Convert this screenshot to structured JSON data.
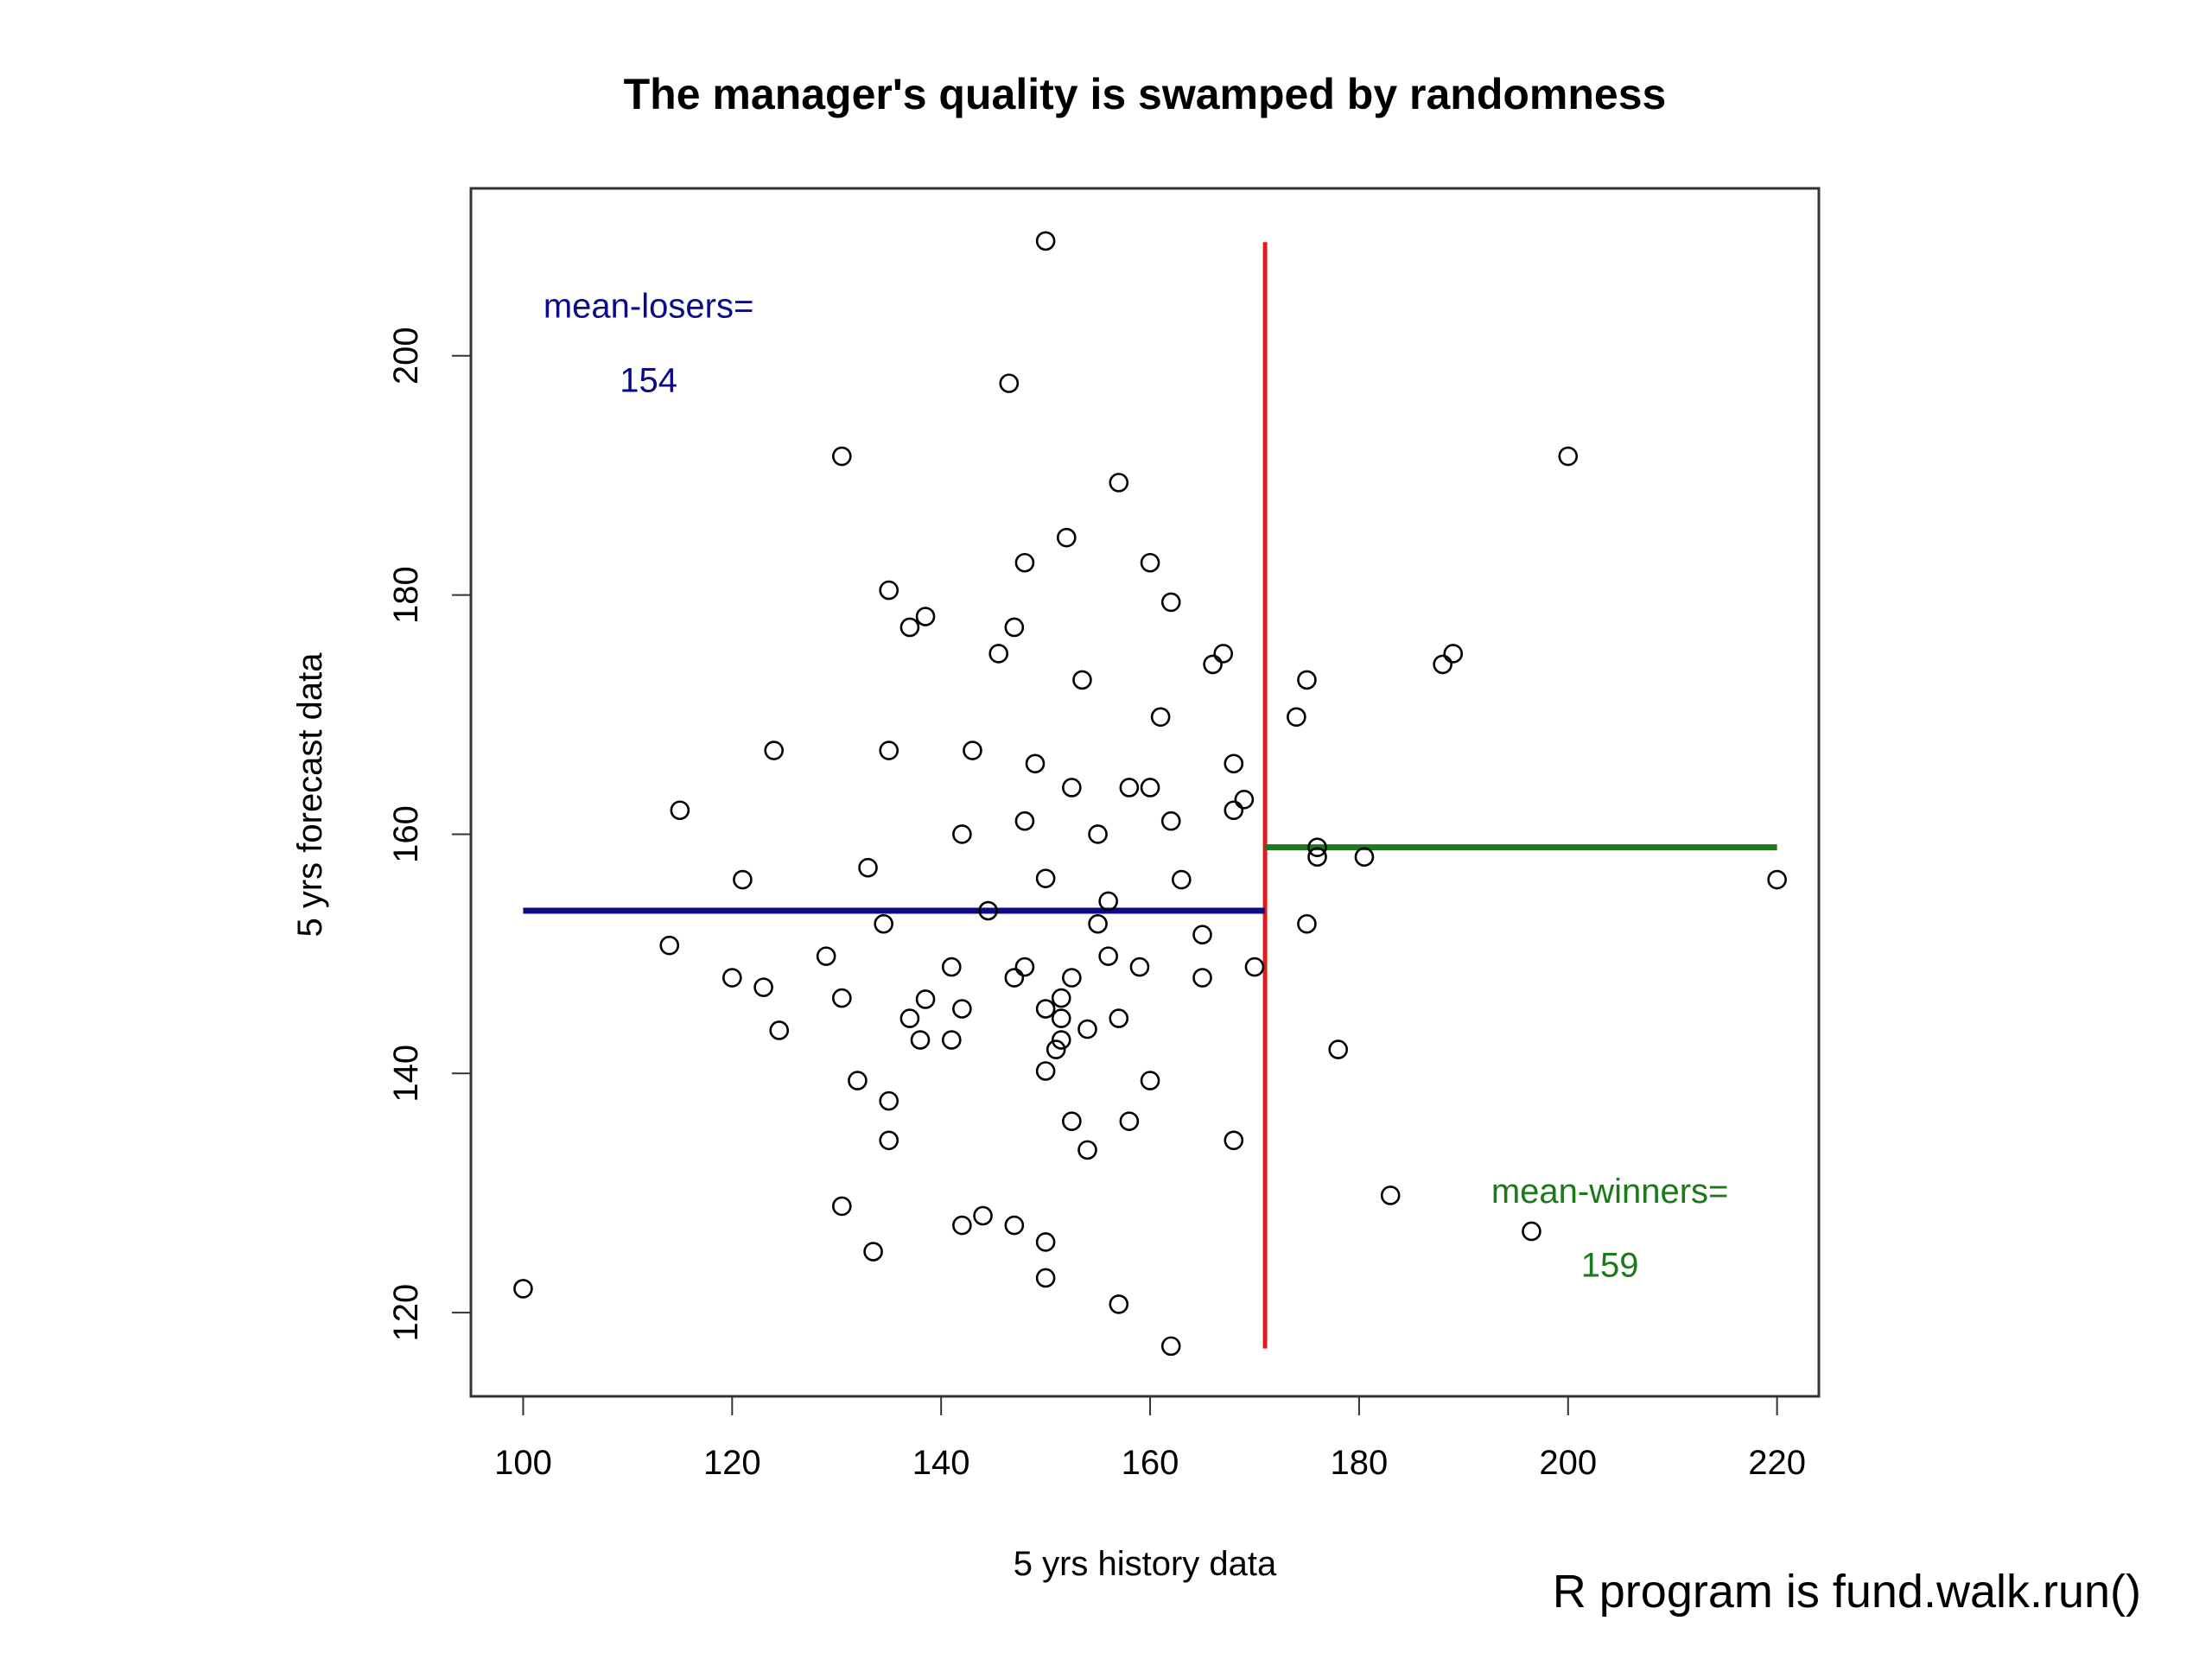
{
  "chart_data": {
    "type": "scatter",
    "title": "The manager's quality is swamped by randomness",
    "xlabel": "5 yrs history data",
    "ylabel": "5 yrs forecast data",
    "xlim": [
      95,
      224
    ],
    "ylim": [
      113,
      214
    ],
    "xticks": [
      100,
      120,
      140,
      160,
      180,
      200,
      220
    ],
    "yticks": [
      120,
      140,
      160,
      180,
      200
    ],
    "grid": false,
    "points": [
      {
        "x": 100,
        "y": 122
      },
      {
        "x": 114,
        "y": 150.7
      },
      {
        "x": 115,
        "y": 162
      },
      {
        "x": 120,
        "y": 148
      },
      {
        "x": 121,
        "y": 156.2
      },
      {
        "x": 123,
        "y": 147.2
      },
      {
        "x": 124,
        "y": 167
      },
      {
        "x": 124.5,
        "y": 143.6
      },
      {
        "x": 129,
        "y": 149.8
      },
      {
        "x": 130.5,
        "y": 191.6
      },
      {
        "x": 130.5,
        "y": 146.3
      },
      {
        "x": 130.5,
        "y": 128.9
      },
      {
        "x": 132,
        "y": 139.4
      },
      {
        "x": 133,
        "y": 157.2
      },
      {
        "x": 133.5,
        "y": 125.1
      },
      {
        "x": 134.5,
        "y": 152.5
      },
      {
        "x": 135,
        "y": 180.4
      },
      {
        "x": 135,
        "y": 167
      },
      {
        "x": 135,
        "y": 137.7
      },
      {
        "x": 135,
        "y": 134.4
      },
      {
        "x": 137,
        "y": 177.3
      },
      {
        "x": 137,
        "y": 144.6
      },
      {
        "x": 138,
        "y": 142.8
      },
      {
        "x": 138.5,
        "y": 178.2
      },
      {
        "x": 138.5,
        "y": 146.2
      },
      {
        "x": 141,
        "y": 148.9
      },
      {
        "x": 141,
        "y": 142.8
      },
      {
        "x": 142,
        "y": 160
      },
      {
        "x": 142,
        "y": 145.4
      },
      {
        "x": 142,
        "y": 127.3
      },
      {
        "x": 143,
        "y": 167
      },
      {
        "x": 144,
        "y": 128.1
      },
      {
        "x": 144.5,
        "y": 153.6
      },
      {
        "x": 145.5,
        "y": 175.1
      },
      {
        "x": 146.5,
        "y": 197.7
      },
      {
        "x": 147,
        "y": 177.3
      },
      {
        "x": 147,
        "y": 148
      },
      {
        "x": 147,
        "y": 127.3
      },
      {
        "x": 148,
        "y": 182.7
      },
      {
        "x": 148,
        "y": 161.1
      },
      {
        "x": 148,
        "y": 148.9
      },
      {
        "x": 149,
        "y": 165.9
      },
      {
        "x": 150,
        "y": 209.6
      },
      {
        "x": 150,
        "y": 156.3
      },
      {
        "x": 150,
        "y": 145.4
      },
      {
        "x": 150,
        "y": 140.2
      },
      {
        "x": 150,
        "y": 125.9
      },
      {
        "x": 150,
        "y": 122.9
      },
      {
        "x": 151,
        "y": 142
      },
      {
        "x": 151.5,
        "y": 146.3
      },
      {
        "x": 151.5,
        "y": 144.6
      },
      {
        "x": 151.5,
        "y": 142.8
      },
      {
        "x": 152,
        "y": 184.8
      },
      {
        "x": 152.5,
        "y": 163.9
      },
      {
        "x": 152.5,
        "y": 148
      },
      {
        "x": 152.5,
        "y": 136
      },
      {
        "x": 153.5,
        "y": 172.9
      },
      {
        "x": 154,
        "y": 143.7
      },
      {
        "x": 154,
        "y": 133.6
      },
      {
        "x": 155,
        "y": 160
      },
      {
        "x": 155,
        "y": 152.5
      },
      {
        "x": 156,
        "y": 154.4
      },
      {
        "x": 156,
        "y": 149.8
      },
      {
        "x": 157,
        "y": 189.4
      },
      {
        "x": 157,
        "y": 144.6
      },
      {
        "x": 157,
        "y": 120.7
      },
      {
        "x": 158,
        "y": 163.9
      },
      {
        "x": 158,
        "y": 136
      },
      {
        "x": 159,
        "y": 148.9
      },
      {
        "x": 160,
        "y": 182.7
      },
      {
        "x": 160,
        "y": 163.9
      },
      {
        "x": 160,
        "y": 139.4
      },
      {
        "x": 161,
        "y": 169.8
      },
      {
        "x": 162,
        "y": 179.4
      },
      {
        "x": 162,
        "y": 161.1
      },
      {
        "x": 162,
        "y": 117.2
      },
      {
        "x": 163,
        "y": 156.2
      },
      {
        "x": 165,
        "y": 151.6
      },
      {
        "x": 165,
        "y": 148
      },
      {
        "x": 166,
        "y": 174.2
      },
      {
        "x": 167,
        "y": 175.1
      },
      {
        "x": 168,
        "y": 165.9
      },
      {
        "x": 168,
        "y": 162
      },
      {
        "x": 168,
        "y": 134.4
      },
      {
        "x": 169,
        "y": 162.9
      },
      {
        "x": 170,
        "y": 148.9
      },
      {
        "x": 174,
        "y": 169.8
      },
      {
        "x": 175,
        "y": 172.9
      },
      {
        "x": 175,
        "y": 152.5
      },
      {
        "x": 176,
        "y": 158.9
      },
      {
        "x": 176,
        "y": 158.1
      },
      {
        "x": 178,
        "y": 142
      },
      {
        "x": 180.5,
        "y": 158.1
      },
      {
        "x": 183,
        "y": 129.8
      },
      {
        "x": 188,
        "y": 174.2
      },
      {
        "x": 189,
        "y": 175.1
      },
      {
        "x": 196.5,
        "y": 126.8
      },
      {
        "x": 200,
        "y": 191.6
      },
      {
        "x": 220,
        "y": 156.2
      }
    ],
    "lines": [
      {
        "x": [
          171,
          171
        ],
        "y": [
          209.5,
          117
        ],
        "color": "#e41a1c"
      },
      {
        "x": [
          100,
          171
        ],
        "y": [
          153.6,
          153.6
        ],
        "color": "#0b0b8a"
      },
      {
        "x": [
          171,
          220
        ],
        "y": [
          158.9,
          158.9
        ],
        "color": "#1a7a1a"
      }
    ],
    "annotations": [
      {
        "text": "mean-losers=",
        "x": 112,
        "y": 203.2,
        "color": "#0b0b8a"
      },
      {
        "text": "154",
        "x": 112,
        "y": 197,
        "color": "#0b0b8a"
      },
      {
        "text": "mean-winners=",
        "x": 204,
        "y": 129.2,
        "color": "#1a7a1a"
      },
      {
        "text": "159",
        "x": 204,
        "y": 123,
        "color": "#1a7a1a"
      }
    ]
  },
  "footnote": "R program is fund.walk.run()"
}
